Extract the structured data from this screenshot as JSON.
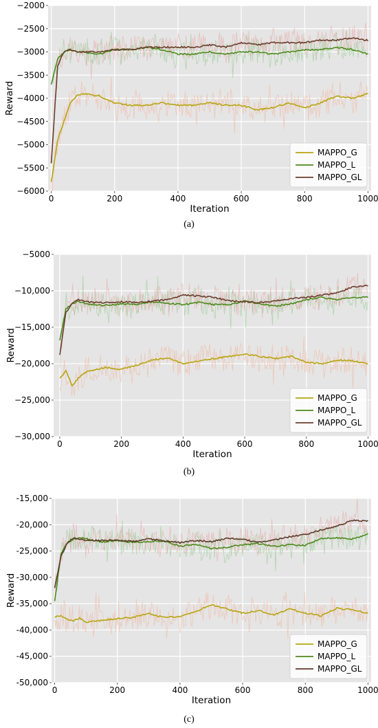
{
  "chart_data": [
    {
      "panel_label": "(a)",
      "type": "line",
      "xlabel": "Iteration",
      "ylabel": "Reward",
      "xlim": [
        -10,
        1010
      ],
      "ylim": [
        -6000,
        -2000
      ],
      "xticks": [
        0,
        200,
        400,
        600,
        800,
        1000
      ],
      "xtick_labels": [
        "0",
        "200",
        "400",
        "600",
        "800",
        "1000"
      ],
      "yticks": [
        -6000,
        -5500,
        -5000,
        -4500,
        -4000,
        -3500,
        -3000,
        -2500,
        -2000
      ],
      "ytick_labels": [
        "−6000",
        "−5500",
        "−5000",
        "−4500",
        "−4000",
        "−3500",
        "−3000",
        "−2500",
        "−2000"
      ],
      "grid": true,
      "legend_position": "lower-right",
      "series": [
        {
          "name": "MAPPO_G",
          "color": "#b8a50f",
          "raw_color": "#f2b49c",
          "x": [
            0,
            20,
            40,
            60,
            80,
            100,
            150,
            200,
            250,
            300,
            350,
            400,
            450,
            500,
            550,
            600,
            650,
            700,
            750,
            800,
            850,
            900,
            950,
            1000
          ],
          "values": [
            -5800,
            -4900,
            -4500,
            -4100,
            -3950,
            -3900,
            -3950,
            -4100,
            -4150,
            -4150,
            -4100,
            -4150,
            -4150,
            -4100,
            -4150,
            -4150,
            -4250,
            -4200,
            -4100,
            -4200,
            -4100,
            -3950,
            -4000,
            -3900
          ]
        },
        {
          "name": "MAPPO_L",
          "color": "#4e8a1c",
          "raw_color": "#8fc98a",
          "x": [
            0,
            20,
            40,
            60,
            80,
            100,
            150,
            200,
            250,
            300,
            350,
            400,
            450,
            500,
            550,
            600,
            650,
            700,
            750,
            800,
            850,
            900,
            950,
            1000
          ],
          "values": [
            -3700,
            -3150,
            -3000,
            -2950,
            -3000,
            -3000,
            -3050,
            -2950,
            -2950,
            -2900,
            -2950,
            -3050,
            -3050,
            -3000,
            -3050,
            -3000,
            -3000,
            -3050,
            -3000,
            -2950,
            -2950,
            -2900,
            -2950,
            -3050
          ]
        },
        {
          "name": "MAPPO_GL",
          "color": "#6b3d2e",
          "raw_color": "#e8a5a5",
          "x": [
            0,
            20,
            40,
            60,
            80,
            100,
            150,
            200,
            250,
            300,
            350,
            400,
            450,
            500,
            550,
            600,
            650,
            700,
            750,
            800,
            850,
            900,
            950,
            1000
          ],
          "values": [
            -5400,
            -3300,
            -3000,
            -2950,
            -3000,
            -3000,
            -3000,
            -2950,
            -2950,
            -2900,
            -2900,
            -2900,
            -2900,
            -2850,
            -2900,
            -2800,
            -2850,
            -2800,
            -2800,
            -2800,
            -2750,
            -2750,
            -2700,
            -2750
          ]
        }
      ]
    },
    {
      "panel_label": "(b)",
      "type": "line",
      "xlabel": "Iteration",
      "ylabel": "Reward",
      "xlim": [
        -20,
        1010
      ],
      "ylim": [
        -30000,
        -5000
      ],
      "xticks": [
        0,
        200,
        400,
        600,
        800,
        1000
      ],
      "xtick_labels": [
        "0",
        "200",
        "400",
        "600",
        "800",
        "1000"
      ],
      "yticks": [
        -30000,
        -25000,
        -20000,
        -15000,
        -10000,
        -5000
      ],
      "ytick_labels": [
        "−30,000",
        "−25,000",
        "−20,000",
        "−15,000",
        "−10,000",
        "−5000"
      ],
      "grid": true,
      "legend_position": "lower-right",
      "series": [
        {
          "name": "MAPPO_G",
          "color": "#b8a50f",
          "raw_color": "#f2b49c",
          "x": [
            0,
            20,
            40,
            60,
            80,
            100,
            150,
            200,
            250,
            300,
            350,
            400,
            450,
            500,
            550,
            600,
            650,
            700,
            750,
            800,
            850,
            900,
            950,
            1000
          ],
          "values": [
            -22000,
            -21000,
            -23000,
            -22000,
            -21200,
            -21000,
            -20500,
            -20800,
            -20200,
            -19500,
            -19200,
            -20000,
            -19600,
            -19300,
            -19000,
            -18700,
            -19000,
            -19300,
            -19000,
            -19800,
            -20000,
            -19500,
            -19600,
            -20000
          ]
        },
        {
          "name": "MAPPO_L",
          "color": "#4e8a1c",
          "raw_color": "#8fc98a",
          "x": [
            0,
            20,
            40,
            60,
            80,
            100,
            150,
            200,
            250,
            300,
            350,
            400,
            450,
            500,
            550,
            600,
            650,
            700,
            750,
            800,
            850,
            900,
            950,
            1000
          ],
          "values": [
            -16800,
            -12500,
            -11800,
            -11400,
            -11700,
            -11900,
            -12000,
            -11800,
            -11900,
            -11500,
            -11700,
            -11900,
            -11600,
            -11900,
            -11900,
            -11400,
            -11800,
            -12100,
            -11800,
            -11200,
            -10900,
            -11200,
            -10900,
            -10900
          ]
        },
        {
          "name": "MAPPO_GL",
          "color": "#6b3d2e",
          "raw_color": "#e8a5a5",
          "x": [
            0,
            20,
            40,
            60,
            80,
            100,
            150,
            200,
            250,
            300,
            350,
            400,
            450,
            500,
            550,
            600,
            650,
            700,
            750,
            800,
            850,
            900,
            950,
            1000
          ],
          "values": [
            -18800,
            -13000,
            -11800,
            -11200,
            -11400,
            -11600,
            -11600,
            -11500,
            -11600,
            -11400,
            -11200,
            -10600,
            -10700,
            -10900,
            -11400,
            -11500,
            -11600,
            -11400,
            -11100,
            -10900,
            -10600,
            -10300,
            -9500,
            -9300
          ]
        }
      ]
    },
    {
      "panel_label": "(c)",
      "type": "line",
      "xlabel": "Iteration",
      "ylabel": "Reward",
      "xlim": [
        -10,
        1010
      ],
      "ylim": [
        -50000,
        -15000
      ],
      "xticks": [
        0,
        200,
        400,
        600,
        800,
        1000
      ],
      "xtick_labels": [
        "0",
        "200",
        "400",
        "600",
        "800",
        "1000"
      ],
      "yticks": [
        -50000,
        -45000,
        -40000,
        -35000,
        -30000,
        -25000,
        -20000,
        -15000
      ],
      "ytick_labels": [
        "-50,000",
        "-45,000",
        "-40,000",
        "-35,000",
        "-30,000",
        "-25,000",
        "-20,000",
        "-15,000"
      ],
      "grid": true,
      "legend_position": "lower-right",
      "series": [
        {
          "name": "MAPPO_G",
          "color": "#b8a50f",
          "raw_color": "#f2b49c",
          "x": [
            0,
            20,
            40,
            60,
            80,
            100,
            150,
            200,
            250,
            300,
            350,
            400,
            450,
            500,
            550,
            600,
            650,
            700,
            750,
            800,
            850,
            900,
            950,
            1000
          ],
          "values": [
            -37500,
            -37200,
            -38000,
            -38300,
            -37700,
            -38600,
            -38200,
            -37800,
            -37600,
            -36900,
            -37600,
            -37500,
            -36500,
            -35200,
            -36000,
            -36800,
            -36300,
            -37100,
            -36000,
            -36800,
            -37300,
            -35900,
            -36100,
            -36900
          ]
        },
        {
          "name": "MAPPO_L",
          "color": "#4e8a1c",
          "raw_color": "#8fc98a",
          "x": [
            0,
            20,
            40,
            60,
            80,
            100,
            150,
            200,
            250,
            300,
            350,
            400,
            450,
            500,
            550,
            600,
            650,
            700,
            750,
            800,
            850,
            900,
            950,
            1000
          ],
          "values": [
            -34500,
            -25500,
            -23500,
            -22800,
            -22500,
            -22700,
            -23300,
            -23000,
            -23400,
            -23200,
            -23100,
            -24100,
            -23700,
            -24500,
            -24300,
            -23800,
            -23600,
            -24100,
            -23800,
            -23900,
            -22600,
            -22500,
            -22700,
            -21800
          ]
        },
        {
          "name": "MAPPO_GL",
          "color": "#5a3b28",
          "raw_color": "#e8a5a5",
          "x": [
            0,
            20,
            40,
            60,
            80,
            100,
            150,
            200,
            250,
            300,
            350,
            400,
            450,
            500,
            550,
            600,
            650,
            700,
            750,
            800,
            850,
            900,
            950,
            1000
          ],
          "values": [
            -32000,
            -26000,
            -23500,
            -22500,
            -22800,
            -22900,
            -23000,
            -22900,
            -23200,
            -22700,
            -23100,
            -23400,
            -23000,
            -23200,
            -22600,
            -22800,
            -23300,
            -22900,
            -22300,
            -21900,
            -21000,
            -20300,
            -19200,
            -19300
          ]
        }
      ]
    }
  ]
}
